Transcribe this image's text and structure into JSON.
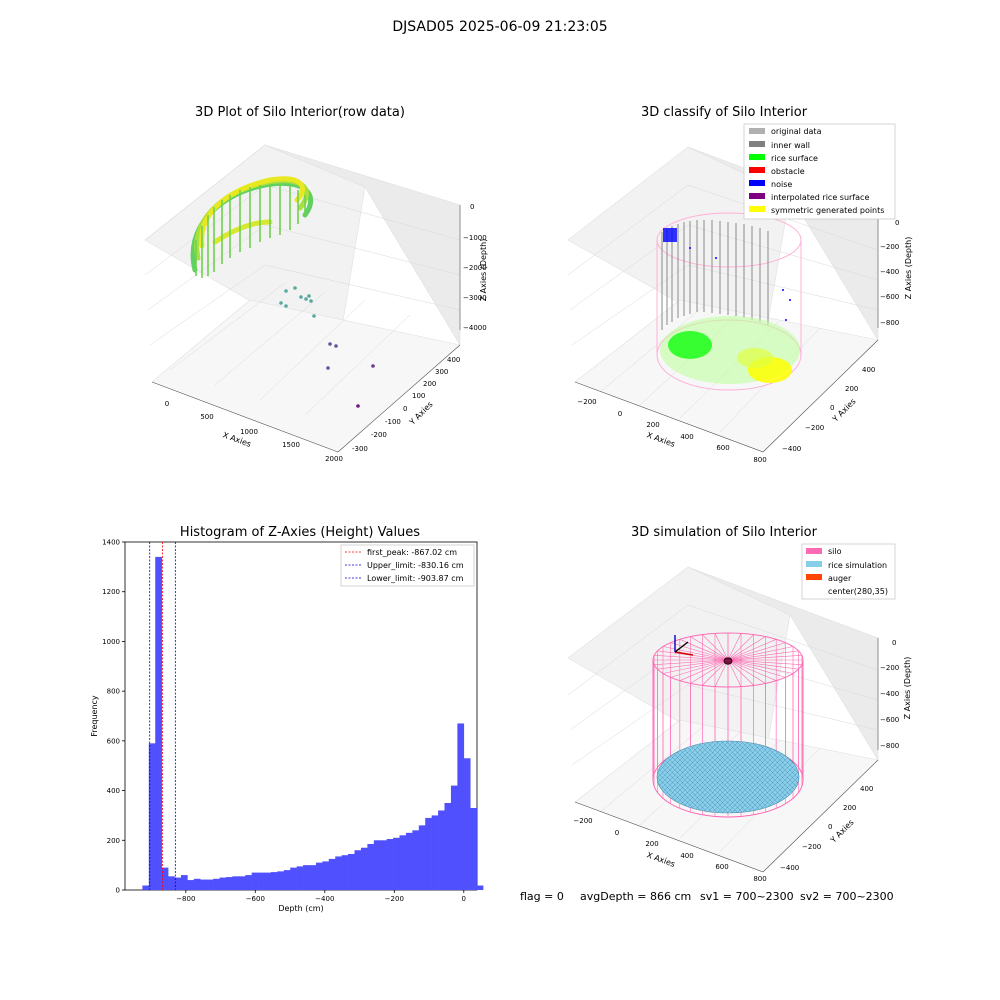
{
  "suptitle": "DJSAD05 2025-06-09 21:23:05",
  "footer": {
    "flag": "flag = 0",
    "avg_depth": "avgDepth = 866 cm",
    "sv1": "sv1 = 700~2300",
    "sv2": "sv2 = 700~2300"
  },
  "colors": {
    "histogram_bar": "#5050ff",
    "first_peak_line": "#ff0000",
    "limit_line": "#0000cc",
    "silo": "#ff69b4",
    "rice_simulation": "#87ceeb",
    "auger": "#ff4500",
    "rice_surface": "#00ff00",
    "noise": "#0000ff",
    "inner_wall": "#808080",
    "symmetric_points": "#ffff00"
  },
  "chart_data": [
    {
      "type": "scatter3d",
      "title": "3D Plot of Silo Interior(row data)",
      "xlabel": "X Axies",
      "ylabel": "Y Axies",
      "zlabel": "Z Axies (Depth)",
      "xticks": [
        "0",
        "500",
        "1000",
        "1500",
        "2000"
      ],
      "yticks": [
        "-300",
        "-200",
        "-100",
        "0",
        "100",
        "200",
        "300",
        "400"
      ],
      "zticks": [
        "0",
        "−1000",
        "−2000",
        "−3000",
        "−4000"
      ]
    },
    {
      "type": "scatter3d",
      "title": "3D classify of Silo Interior",
      "xlabel": "X Axies",
      "ylabel": "Y Axies",
      "zlabel": "Z Axies (Depth)",
      "xticks": [
        "−200",
        "0",
        "200",
        "400",
        "600",
        "800"
      ],
      "yticks": [
        "−400",
        "−200",
        "0",
        "200",
        "400"
      ],
      "zticks": [
        "0",
        "−200",
        "−400",
        "−600",
        "−800"
      ],
      "legend": [
        {
          "label": "original data",
          "color": "#b0b0b0"
        },
        {
          "label": "inner wall",
          "color": "#808080"
        },
        {
          "label": "rice surface",
          "color": "#00ff00"
        },
        {
          "label": "obstacle",
          "color": "#ff0000"
        },
        {
          "label": "noise",
          "color": "#0000ff"
        },
        {
          "label": "interpolated rice surface",
          "color": "#800080"
        },
        {
          "label": "symmetric generated points",
          "color": "#ffff00"
        }
      ]
    },
    {
      "type": "bar",
      "title": "Histogram of Z-Axies (Height) Values",
      "xlabel": "Depth (cm)",
      "ylabel": "Frequency",
      "xlim": [
        -975,
        38
      ],
      "ylim": [
        0,
        1400
      ],
      "xticks": [
        -800,
        -600,
        -400,
        -200,
        0
      ],
      "xtick_labels": [
        "−800",
        "−600",
        "−400",
        "−200",
        "0"
      ],
      "yticks": [
        0,
        200,
        400,
        600,
        800,
        1000,
        1200,
        1400
      ],
      "bin_start": -925,
      "bin_width": 18.5,
      "values": [
        18,
        590,
        1340,
        90,
        55,
        50,
        60,
        40,
        45,
        42,
        42,
        45,
        50,
        52,
        55,
        55,
        60,
        70,
        70,
        70,
        72,
        75,
        80,
        90,
        95,
        100,
        100,
        110,
        115,
        125,
        135,
        140,
        145,
        160,
        170,
        185,
        200,
        200,
        205,
        210,
        220,
        230,
        240,
        260,
        290,
        300,
        320,
        350,
        420,
        670,
        530,
        330,
        18
      ],
      "lines": [
        {
          "label": "first_peak: -867.02 cm",
          "x": -867.02,
          "color": "#ff0000"
        },
        {
          "label": "Upper_limit: -830.16 cm",
          "x": -830.16,
          "color": "#0000cc"
        },
        {
          "label": "Lower_limit: -903.87 cm",
          "x": -903.87,
          "color": "#0000cc"
        }
      ]
    },
    {
      "type": "surface3d",
      "title": "3D simulation of Silo Interior",
      "xlabel": "X Axies",
      "ylabel": "Y Axies",
      "zlabel": "Z Axies (Depth)",
      "xticks": [
        "−200",
        "0",
        "200",
        "400",
        "600",
        "800"
      ],
      "yticks": [
        "−400",
        "−200",
        "0",
        "200",
        "400"
      ],
      "zticks": [
        "0",
        "−200",
        "−400",
        "−600",
        "−800"
      ],
      "legend": [
        {
          "label": "silo",
          "color": "#ff69b4"
        },
        {
          "label": "rice simulation",
          "color": "#87ceeb"
        },
        {
          "label": "auger",
          "color": "#ff4500"
        },
        {
          "label": "center(280,35)",
          "color": ""
        }
      ]
    }
  ]
}
